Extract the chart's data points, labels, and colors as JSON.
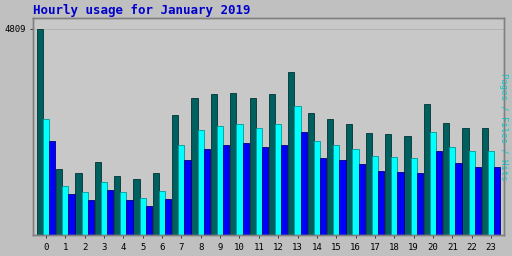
{
  "title": "Hourly usage for January 2019",
  "ylabel_right": "Pages / Files / Hits",
  "hours": [
    0,
    1,
    2,
    3,
    4,
    5,
    6,
    7,
    8,
    9,
    10,
    11,
    12,
    13,
    14,
    15,
    16,
    17,
    18,
    19,
    20,
    21,
    22,
    23
  ],
  "ytick_label": "4809",
  "ymax": 4809,
  "hits": [
    4809,
    1550,
    1450,
    1700,
    1380,
    1300,
    1450,
    2800,
    3200,
    3280,
    3300,
    3200,
    3280,
    3800,
    2850,
    2700,
    2580,
    2380,
    2350,
    2320,
    3050,
    2620,
    2500,
    2500
  ],
  "files": [
    2700,
    1150,
    1000,
    1250,
    1000,
    860,
    1020,
    2100,
    2450,
    2550,
    2600,
    2500,
    2600,
    3000,
    2200,
    2100,
    2000,
    1850,
    1830,
    1800,
    2400,
    2050,
    1950,
    1950
  ],
  "pages": [
    2200,
    950,
    820,
    1050,
    820,
    680,
    850,
    1750,
    2000,
    2100,
    2150,
    2050,
    2100,
    2400,
    1800,
    1750,
    1650,
    1500,
    1480,
    1450,
    1950,
    1680,
    1580,
    1580
  ],
  "color_hits": "#006060",
  "color_files": "#00ffff",
  "color_pages": "#0000ff",
  "bg_color": "#c0c0c0",
  "plot_bg": "#c8c8c8",
  "border_color": "#808080",
  "title_color": "#0000cc",
  "ylabel_color": "#00cccc",
  "tick_color": "#000000",
  "figsize": [
    5.12,
    2.56
  ],
  "dpi": 100
}
